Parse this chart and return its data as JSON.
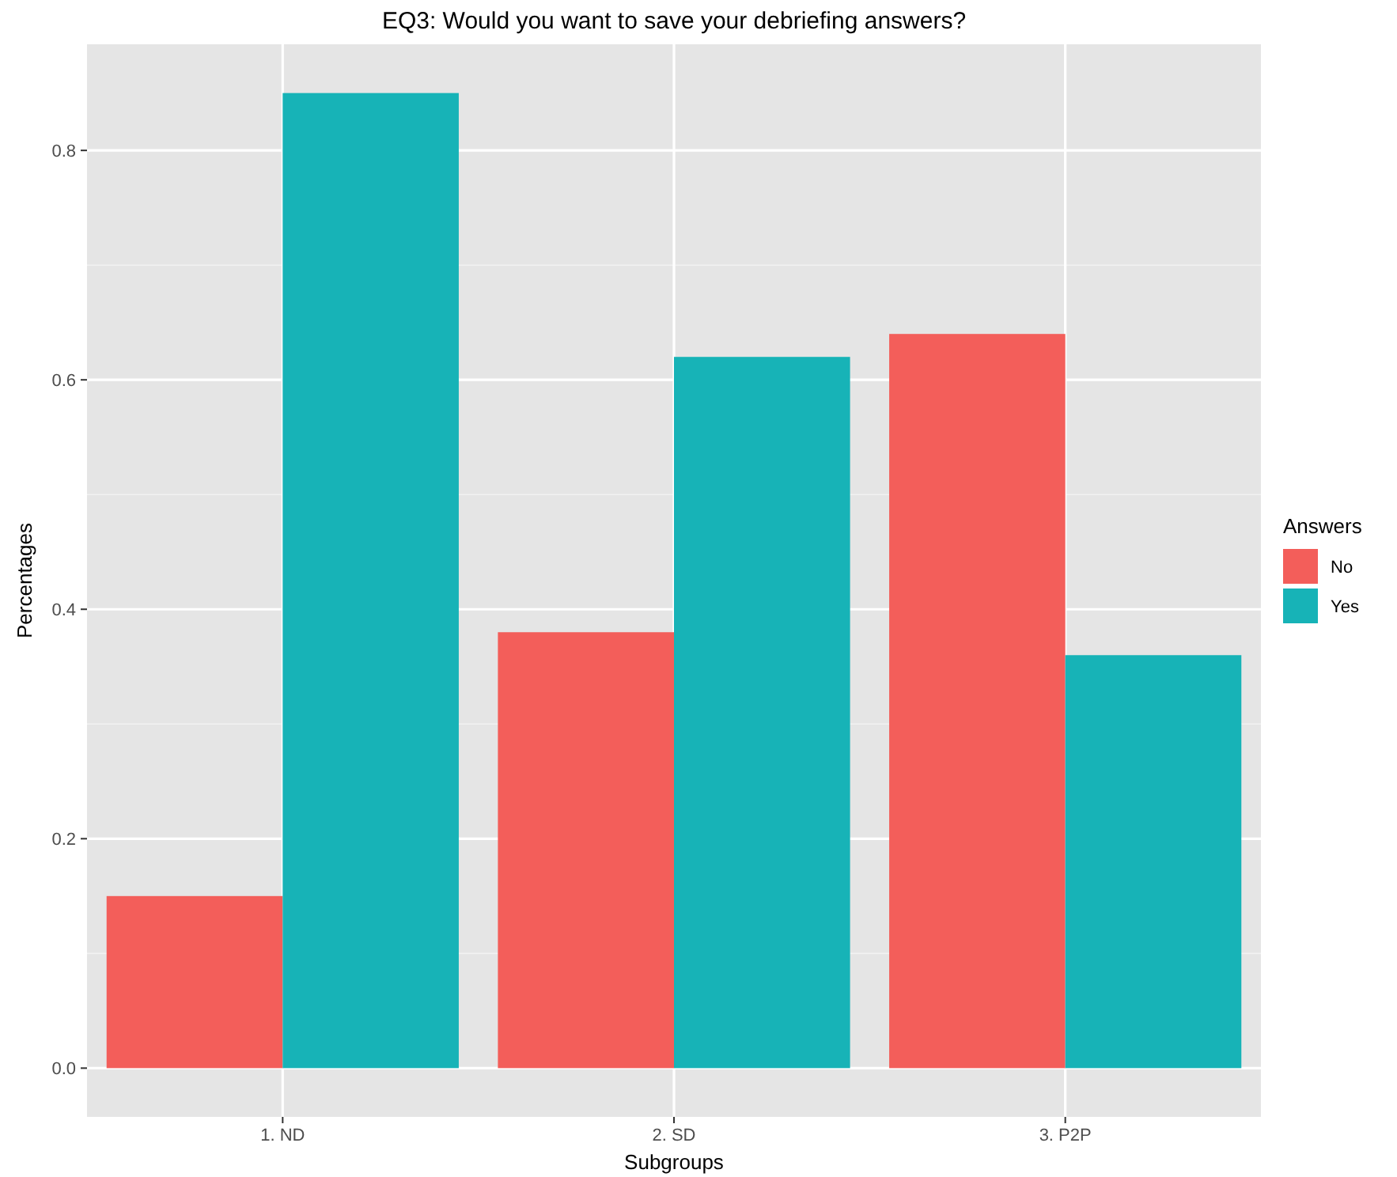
{
  "chart_data": {
    "type": "bar",
    "title": "EQ3: Would you want to save your debriefing answers?",
    "xlabel": "Subgroups",
    "ylabel": "Percentages",
    "legend_title": "Answers",
    "categories": [
      "1. ND",
      "2. SD",
      "3. P2P"
    ],
    "series": [
      {
        "name": "No",
        "color": "#f35e5a",
        "values": [
          0.15,
          0.38,
          0.64
        ]
      },
      {
        "name": "Yes",
        "color": "#17b3b7",
        "values": [
          0.85,
          0.62,
          0.36
        ]
      }
    ],
    "ylim": [
      -0.0425,
      0.8925
    ],
    "yticks": [
      {
        "value": 0,
        "label": "0.0"
      },
      {
        "value": 0.2,
        "label": "0.2"
      },
      {
        "value": 0.4,
        "label": "0.4"
      },
      {
        "value": 0.6,
        "label": "0.6"
      },
      {
        "value": 0.8,
        "label": "0.8"
      }
    ],
    "grid": true,
    "legend": "right"
  }
}
